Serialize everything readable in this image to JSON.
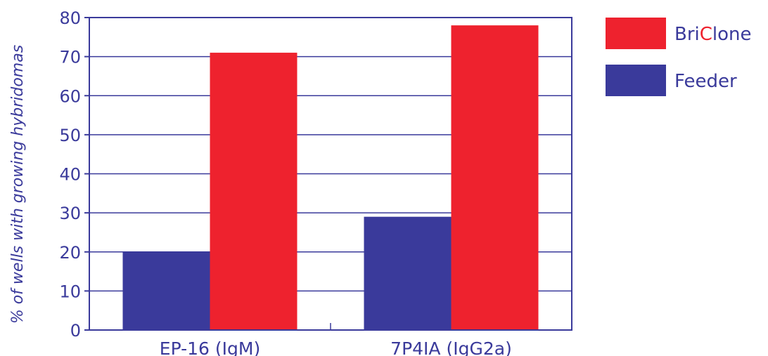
{
  "chart_data": {
    "type": "bar",
    "categories": [
      "EP-16 (IgM)",
      "7P4IA (IgG2a)"
    ],
    "series": [
      {
        "name": "Feeder",
        "values": [
          20,
          29
        ],
        "color": "#3a3a9b"
      },
      {
        "name": "BriClone",
        "values": [
          71,
          78
        ],
        "color": "#ee222e"
      }
    ],
    "ylabel": "% of wells with growing hybridomas",
    "xlabel": "",
    "ylim": [
      0,
      80
    ],
    "yticks": [
      0,
      10,
      20,
      30,
      40,
      50,
      60,
      70,
      80
    ],
    "grid": true,
    "legend": {
      "placement": "right-top",
      "entries": [
        {
          "series": "BriClone",
          "parts": [
            {
              "text": "Bri",
              "color": "#3a3a9b"
            },
            {
              "text": "C",
              "color": "#ee222e"
            },
            {
              "text": "lone",
              "color": "#3a3a9b"
            }
          ]
        },
        {
          "series": "Feeder",
          "parts": [
            {
              "text": "Feeder",
              "color": "#3a3a9b"
            }
          ]
        }
      ]
    },
    "text_color": "#3a3a9b",
    "axis_color": "#3a3a9b"
  }
}
